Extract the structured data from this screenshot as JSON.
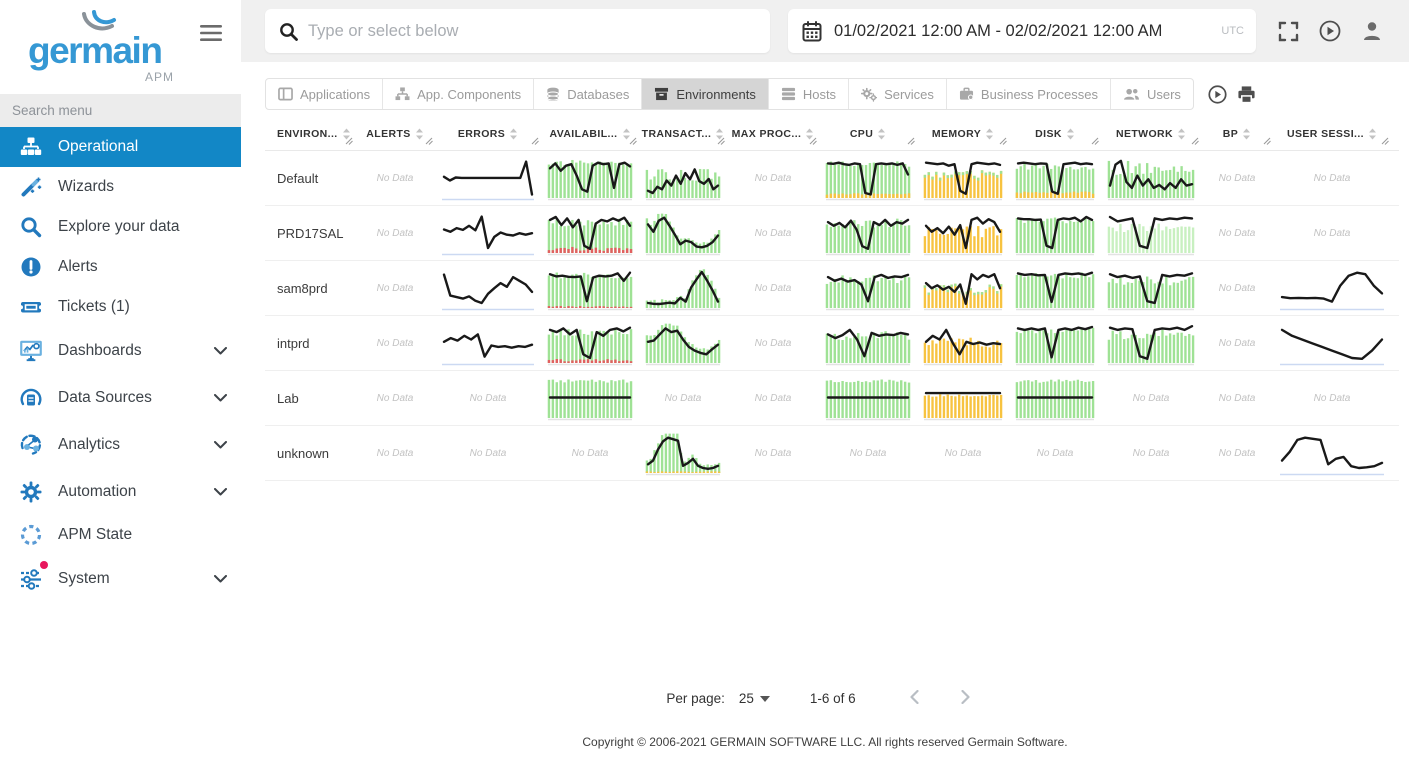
{
  "sidebar": {
    "logo": {
      "name": "germain",
      "sub": "APM"
    },
    "search_placeholder": "Search menu",
    "items": [
      {
        "label": "Operational",
        "icon": "sitemap-icon",
        "selected": true
      },
      {
        "label": "Wizards",
        "icon": "wand-icon"
      },
      {
        "label": "Explore your data",
        "icon": "search-icon"
      },
      {
        "label": "Alerts",
        "icon": "alert-icon"
      },
      {
        "label": "Tickets (1)",
        "icon": "ticket-icon"
      },
      {
        "label": "Dashboards",
        "icon": "dashboard-icon",
        "expandable": true
      },
      {
        "label": "Data Sources",
        "icon": "datasource-icon",
        "expandable": true
      },
      {
        "label": "Analytics",
        "icon": "analytics-icon",
        "expandable": true
      },
      {
        "label": "Automation",
        "icon": "gear-icon",
        "expandable": true
      },
      {
        "label": "APM State",
        "icon": "dashed-circle-icon"
      },
      {
        "label": "System",
        "icon": "sliders-icon",
        "expandable": true,
        "badge": true
      }
    ]
  },
  "topbar": {
    "search_placeholder": "Type or select below",
    "date_range": "01/02/2021 12:00 AM - 02/02/2021 12:00 AM",
    "timezone": "UTC"
  },
  "tabs": [
    {
      "label": "Applications",
      "icon": "window-icon"
    },
    {
      "label": "App. Components",
      "icon": "component-icon"
    },
    {
      "label": "Databases",
      "icon": "database-icon"
    },
    {
      "label": "Environments",
      "icon": "box-icon",
      "selected": true
    },
    {
      "label": "Hosts",
      "icon": "server-icon"
    },
    {
      "label": "Services",
      "icon": "gears-icon"
    },
    {
      "label": "Business Processes",
      "icon": "briefcase-icon"
    },
    {
      "label": "Users",
      "icon": "users-icon"
    }
  ],
  "table": {
    "no_data": "No Data",
    "columns": [
      {
        "label": "ENVIRON...",
        "key": "environment"
      },
      {
        "label": "ALERTS",
        "key": "alerts"
      },
      {
        "label": "ERRORS",
        "key": "errors"
      },
      {
        "label": "AVAILABIL...",
        "key": "availability"
      },
      {
        "label": "TRANSACT...",
        "key": "transactions"
      },
      {
        "label": "MAX PROC...",
        "key": "max-process"
      },
      {
        "label": "CPU",
        "key": "cpu"
      },
      {
        "label": "MEMORY",
        "key": "memory"
      },
      {
        "label": "DISK",
        "key": "disk"
      },
      {
        "label": "NETWORK",
        "key": "network"
      },
      {
        "label": "BP",
        "key": "bp"
      },
      {
        "label": "USER SESSI...",
        "key": "user-sessions"
      }
    ],
    "rows": [
      {
        "name": "Default",
        "cells": [
          null,
          {
            "line": [
              52,
              42,
              50,
              49,
              49,
              49,
              49,
              49,
              49,
              49,
              49,
              49,
              49,
              49,
              93,
              4
            ],
            "baseline": "blue"
          },
          {
            "bars": {
              "color": "green",
              "min": 80,
              "max": 93,
              "seed": 11
            },
            "line": [
              75,
              88,
              68,
              82,
              86,
              55,
              18,
              12,
              82,
              90,
              86,
              88,
              22,
              86,
              90,
              80
            ]
          },
          {
            "bars": {
              "color": "green",
              "min": 42,
              "max": 72,
              "seed": 12
            },
            "line": [
              14,
              8,
              25,
              18,
              42,
              28,
              55,
              33,
              62,
              45,
              72,
              40,
              33,
              46,
              18,
              28
            ]
          },
          null,
          {
            "bars": {
              "color": "green",
              "min": 76,
              "max": 90,
              "seed": 13
            },
            "bottom": {
              "color": "yellow",
              "min": 8,
              "max": 12
            },
            "line": [
              88,
              87,
              90,
              86,
              84,
              88,
              86,
              8,
              4,
              86,
              88,
              86,
              88,
              84,
              88,
              58
            ]
          },
          {
            "bars": {
              "color": "yellow",
              "min": 48,
              "max": 68,
              "seed": 14
            },
            "cap": {
              "color": "green",
              "h": 7
            },
            "line": [
              90,
              88,
              86,
              88,
              82,
              86,
              14,
              6,
              86,
              90,
              88,
              86,
              88,
              84
            ]
          },
          {
            "bars": {
              "color": "green",
              "min": 68,
              "max": 85,
              "seed": 15
            },
            "bottom": {
              "color": "yellow",
              "min": 10,
              "max": 16
            },
            "line": [
              88,
              90,
              88,
              86,
              88,
              87,
              12,
              6,
              86,
              88,
              90,
              86,
              88,
              86
            ]
          },
          {
            "bars": {
              "color": "green",
              "min": 55,
              "max": 92,
              "seed": 16
            },
            "line": [
              28,
              85,
              95,
              38,
              22,
              55,
              28,
              45,
              22,
              30,
              18,
              35,
              22,
              45,
              28,
              32
            ]
          },
          null,
          null
        ]
      },
      {
        "name": "PRD17SAL",
        "cells": [
          null,
          {
            "line": [
              58,
              52,
              62,
              57,
              68,
              56,
              93,
              8,
              38,
              50,
              44,
              42,
              48,
              44,
              48
            ],
            "baseline": "blue"
          },
          {
            "bars": {
              "color": "green",
              "min": 62,
              "max": 85,
              "seed": 21
            },
            "bottom": {
              "color": "red",
              "min": 5,
              "max": 16
            },
            "line": [
              84,
              92,
              70,
              88,
              64,
              84,
              14,
              6,
              74,
              84,
              80,
              88,
              82,
              90,
              68
            ]
          },
          {
            "bars": {
              "color": "green",
              "follow": true,
              "seed": 22
            },
            "line": [
              72,
              52,
              82,
              90,
              68,
              44,
              18,
              28,
              24,
              12,
              10,
              14,
              24,
              42
            ]
          },
          null,
          {
            "bars": {
              "color": "green",
              "min": 62,
              "max": 84,
              "seed": 23
            },
            "line": [
              78,
              68,
              76,
              64,
              82,
              58,
              13,
              6,
              78,
              70,
              84,
              68,
              78,
              74,
              84
            ]
          },
          {
            "bars": {
              "color": "yellow",
              "min": 38,
              "max": 66,
              "seed": 24
            },
            "line": [
              68,
              52,
              62,
              48,
              66,
              44,
              70,
              8,
              84,
              90,
              74,
              86,
              78,
              52
            ]
          },
          {
            "bars": {
              "color": "green",
              "min": 72,
              "max": 87,
              "seed": 25
            },
            "line": [
              88,
              86,
              86,
              84,
              85,
              14,
              8,
              84,
              88,
              86,
              90,
              80,
              92,
              84
            ]
          },
          {
            "bars": {
              "color": "lightgreen",
              "min": 50,
              "max": 72,
              "seed": 26
            },
            "line": [
              92,
              80,
              84,
              88,
              14,
              8,
              88,
              84,
              88,
              86,
              90,
              88
            ]
          },
          null,
          null
        ]
      },
      {
        "name": "sam8prd",
        "cells": [
          null,
          {
            "line": [
              85,
              28,
              24,
              20,
              26,
              14,
              8,
              33,
              48,
              62,
              52,
              78,
              68,
              58,
              38
            ],
            "baseline": "blue"
          },
          {
            "bars": {
              "color": "green",
              "min": 72,
              "max": 87,
              "seed": 31
            },
            "bottom": {
              "color": "red",
              "min": 2,
              "max": 5
            },
            "line": [
              86,
              80,
              82,
              79,
              78,
              80,
              13,
              77,
              82,
              80,
              82,
              88,
              68,
              90
            ]
          },
          {
            "bars": {
              "color": "green",
              "follow": true,
              "seed": 32
            },
            "line": [
              8,
              6,
              5,
              7,
              9,
              7,
              22,
              12,
              50,
              72,
              92,
              68,
              42,
              12
            ]
          },
          null,
          {
            "bars": {
              "color": "green",
              "min": 58,
              "max": 80,
              "seed": 33
            },
            "line": [
              78,
              68,
              74,
              66,
              70,
              58,
              13,
              78,
              84,
              76,
              80,
              78,
              84
            ]
          },
          {
            "bars": {
              "color": "yellow",
              "min": 36,
              "max": 60,
              "seed": 34
            },
            "cap": {
              "color": "green",
              "h": 6
            },
            "line": [
              62,
              48,
              56,
              44,
              52,
              38,
              58,
              6,
              86,
              72,
              84,
              78,
              86,
              48
            ]
          },
          {
            "bars": {
              "color": "green",
              "min": 72,
              "max": 87,
              "seed": 35
            },
            "line": [
              88,
              84,
              86,
              83,
              84,
              11,
              84,
              88,
              86,
              88,
              84,
              90
            ]
          },
          {
            "bars": {
              "color": "green",
              "min": 55,
              "max": 78,
              "seed": 36
            },
            "line": [
              86,
              78,
              82,
              76,
              80,
              13,
              8,
              84,
              80,
              84,
              82,
              88
            ]
          },
          null,
          {
            "line": [
              24,
              21,
              22,
              21,
              22,
              20,
              12,
              55,
              82,
              90,
              86,
              55,
              34
            ],
            "baseline": "blue"
          }
        ]
      },
      {
        "name": "intprd",
        "cells": [
          null,
          {
            "line": [
              52,
              62,
              55,
              68,
              58,
              72,
              12,
              42,
              38,
              40,
              36,
              40,
              38,
              44
            ],
            "baseline": "blue"
          },
          {
            "bars": {
              "color": "green",
              "min": 66,
              "max": 84,
              "seed": 41
            },
            "bottom": {
              "color": "red",
              "min": 4,
              "max": 10
            },
            "line": [
              84,
              78,
              88,
              72,
              84,
              18,
              8,
              78,
              68,
              84,
              88,
              80,
              90
            ]
          },
          {
            "bars": {
              "color": "green",
              "follow": true,
              "seed": 42
            },
            "line": [
              52,
              55,
              72,
              88,
              78,
              82,
              58,
              38,
              28,
              22,
              18,
              32,
              44
            ]
          },
          null,
          {
            "bars": {
              "color": "green",
              "min": 56,
              "max": 78,
              "seed": 43
            },
            "line": [
              72,
              62,
              70,
              84,
              58,
              13,
              76,
              68,
              72,
              70,
              76,
              72
            ]
          },
          {
            "bars": {
              "color": "yellow",
              "min": 38,
              "max": 62,
              "seed": 44
            },
            "line": [
              52,
              68,
              58,
              84,
              48,
              18,
              52,
              46,
              50,
              44,
              48,
              46
            ]
          },
          {
            "bars": {
              "color": "green",
              "min": 72,
              "max": 87,
              "seed": 45
            },
            "line": [
              88,
              84,
              88,
              84,
              88,
              10,
              84,
              88,
              84,
              90,
              86,
              92
            ]
          },
          {
            "bars": {
              "color": "green",
              "min": 56,
              "max": 82,
              "seed": 46
            },
            "line": [
              90,
              84,
              88,
              86,
              13,
              6,
              84,
              88,
              86,
              90,
              84,
              94
            ]
          },
          null,
          {
            "line": [
              84,
              68,
              58,
              48,
              38,
              28,
              18,
              8,
              6,
              28,
              58
            ],
            "baseline": "blue"
          }
        ]
      },
      {
        "name": "Lab",
        "cells": [
          null,
          null,
          {
            "bars": {
              "color": "green",
              "min": 86,
              "max": 94,
              "seed": 51
            },
            "line": [
              50,
              50
            ]
          },
          null,
          null,
          {
            "bars": {
              "color": "green",
              "min": 86,
              "max": 94,
              "seed": 52
            },
            "line": [
              50,
              50
            ]
          },
          {
            "bars": {
              "color": "yellow",
              "min": 52,
              "max": 58,
              "seed": 53
            },
            "line": [
              62,
              62
            ]
          },
          {
            "bars": {
              "color": "green",
              "min": 86,
              "max": 94,
              "seed": 54
            },
            "line": [
              50,
              50
            ]
          },
          null,
          null,
          null
        ]
      },
      {
        "name": "unknown",
        "cells": [
          null,
          null,
          null,
          {
            "bars": {
              "color": "green",
              "follow": true,
              "seed": 61
            },
            "bottom": {
              "color": "yellow",
              "min": 2,
              "max": 4
            },
            "line": [
              18,
              28,
              58,
              80,
              90,
              86,
              82,
              14,
              22,
              33,
              14,
              8,
              6,
              8,
              14
            ]
          },
          null,
          null,
          null,
          null,
          null,
          null,
          {
            "line": [
              28,
              52,
              84,
              90,
              87,
              84,
              18,
              33,
              38,
              13,
              8,
              10,
              13,
              22
            ],
            "baseline": "blue"
          }
        ]
      }
    ]
  },
  "pagination": {
    "per_page_label": "Per page:",
    "per_page_value": "25",
    "range_text": "1-6 of 6"
  },
  "footer_text": "Copyright © 2006-2021 GERMAIN SOFTWARE LLC. All rights reserved Germain Software.",
  "palette": {
    "accent_blue": "#1287c6",
    "bar_green": "#9fe295",
    "bar_lightgreen": "#c8f0c0",
    "bar_yellow": "#f7c340",
    "bar_red": "#e26060",
    "spark_line": "#191919",
    "baseline_blue": "#ccd9f2",
    "chat_blue": "#2a6ff0"
  }
}
